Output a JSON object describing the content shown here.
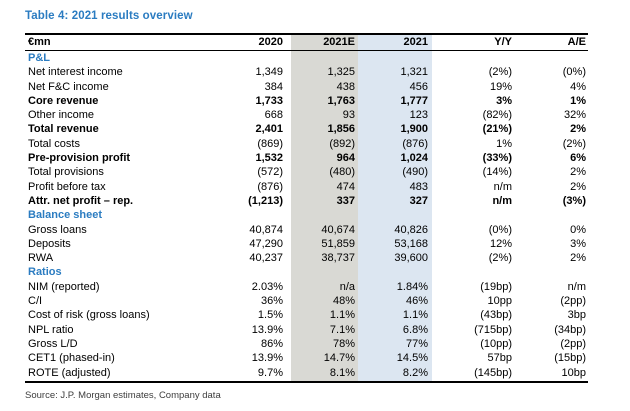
{
  "title": "Table 4: 2021 results overview",
  "source": "Source: J.P. Morgan estimates, Company data",
  "colors": {
    "accent_blue": "#2b7cc1",
    "estimate_column_highlight": "#d9d9d4",
    "actual_column_highlight": "#dce6f1",
    "border_black": "#000000"
  },
  "table": {
    "columns": [
      "€mn",
      "2020",
      "2021E",
      "2021",
      "Y/Y",
      "A/E"
    ],
    "rows": [
      {
        "label": "P&L",
        "style": "section",
        "values": [
          "",
          "",
          "",
          "",
          ""
        ]
      },
      {
        "label": "Net interest income",
        "style": "normal",
        "values": [
          "1,349",
          "1,325",
          "1,321",
          "(2%)",
          "(0%)"
        ]
      },
      {
        "label": "Net F&C income",
        "style": "normal",
        "values": [
          "384",
          "438",
          "456",
          "19%",
          "4%"
        ]
      },
      {
        "label": "Core revenue",
        "style": "bold",
        "values": [
          "1,733",
          "1,763",
          "1,777",
          "3%",
          "1%"
        ]
      },
      {
        "label": "Other income",
        "style": "normal",
        "values": [
          "668",
          "93",
          "123",
          "(82%)",
          "32%"
        ]
      },
      {
        "label": "Total revenue",
        "style": "bold",
        "values": [
          "2,401",
          "1,856",
          "1,900",
          "(21%)",
          "2%"
        ]
      },
      {
        "label": "Total costs",
        "style": "normal",
        "values": [
          "(869)",
          "(892)",
          "(876)",
          "1%",
          "(2%)"
        ]
      },
      {
        "label": "Pre-provision profit",
        "style": "bold",
        "values": [
          "1,532",
          "964",
          "1,024",
          "(33%)",
          "6%"
        ]
      },
      {
        "label": "Total provisions",
        "style": "normal",
        "values": [
          "(572)",
          "(480)",
          "(490)",
          "(14%)",
          "2%"
        ]
      },
      {
        "label": "Profit before tax",
        "style": "normal",
        "values": [
          "(876)",
          "474",
          "483",
          "n/m",
          "2%"
        ]
      },
      {
        "label": "Attr. net profit – rep.",
        "style": "bold",
        "values": [
          "(1,213)",
          "337",
          "327",
          "n/m",
          "(3%)"
        ]
      },
      {
        "label": "Balance sheet",
        "style": "section",
        "values": [
          "",
          "",
          "",
          "",
          ""
        ]
      },
      {
        "label": "Gross loans",
        "style": "normal",
        "values": [
          "40,874",
          "40,674",
          "40,826",
          "(0%)",
          "0%"
        ]
      },
      {
        "label": "Deposits",
        "style": "normal",
        "values": [
          "47,290",
          "51,859",
          "53,168",
          "12%",
          "3%"
        ]
      },
      {
        "label": "RWA",
        "style": "normal",
        "values": [
          "40,237",
          "38,737",
          "39,600",
          "(2%)",
          "2%"
        ]
      },
      {
        "label": "Ratios",
        "style": "section",
        "values": [
          "",
          "",
          "",
          "",
          ""
        ]
      },
      {
        "label": "NIM (reported)",
        "style": "normal",
        "values": [
          "2.03%",
          "n/a",
          "1.84%",
          "(19bp)",
          "n/m"
        ]
      },
      {
        "label": "C/I",
        "style": "normal",
        "values": [
          "36%",
          "48%",
          "46%",
          "10pp",
          "(2pp)"
        ]
      },
      {
        "label": "Cost of risk (gross loans)",
        "style": "normal",
        "values": [
          "1.5%",
          "1.1%",
          "1.1%",
          "(43bp)",
          "3bp"
        ]
      },
      {
        "label": "NPL ratio",
        "style": "normal",
        "values": [
          "13.9%",
          "7.1%",
          "6.8%",
          "(715bp)",
          "(34bp)"
        ]
      },
      {
        "label": "Gross L/D",
        "style": "normal",
        "values": [
          "86%",
          "78%",
          "77%",
          "(10pp)",
          "(2pp)"
        ]
      },
      {
        "label": "CET1 (phased-in)",
        "style": "normal",
        "values": [
          "13.9%",
          "14.7%",
          "14.5%",
          "57bp",
          "(15bp)"
        ]
      },
      {
        "label": "ROTE (adjusted)",
        "style": "normal",
        "values": [
          "9.7%",
          "8.1%",
          "8.2%",
          "(145bp)",
          "10bp"
        ]
      }
    ]
  }
}
